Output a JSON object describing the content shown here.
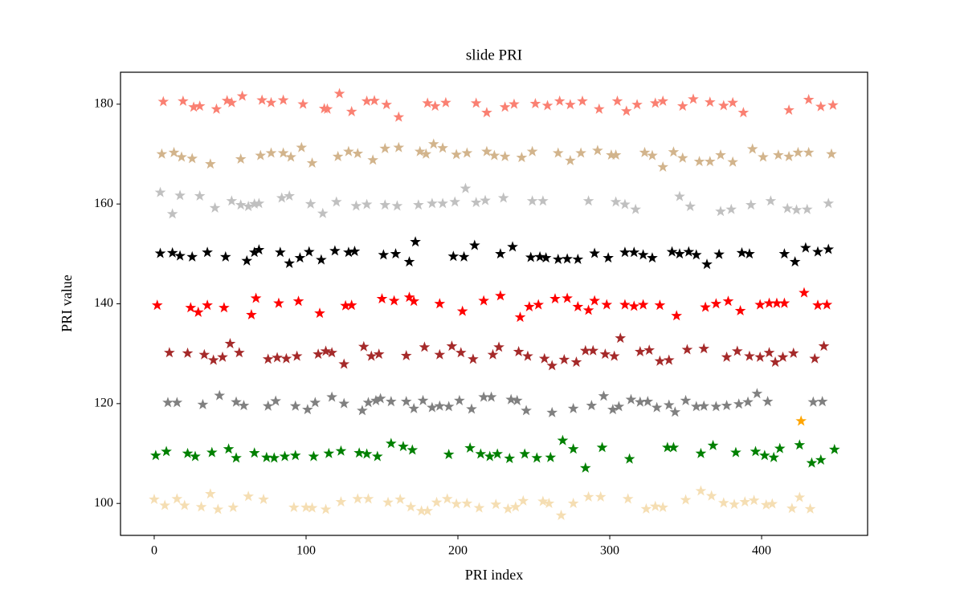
{
  "chart_data": {
    "type": "scatter",
    "title": "slide PRI",
    "x_label": "PRI index",
    "y_label": "PRI value",
    "xlim": [
      -22.2,
      469.8
    ],
    "ylim": [
      93.6,
      186.4
    ],
    "xticks": [
      0,
      100,
      200,
      300,
      400
    ],
    "yticks": [
      100,
      120,
      140,
      160,
      180
    ],
    "series": [
      {
        "color": "#fa8072",
        "x": [
          6,
          19,
          26,
          30,
          41,
          48,
          51,
          58,
          71,
          77,
          85,
          98,
          112,
          114,
          122,
          130,
          140,
          145,
          153,
          161,
          180,
          185,
          192,
          212,
          219,
          231,
          237,
          251,
          259,
          267,
          274,
          282,
          293,
          305,
          311,
          318,
          330,
          335,
          348,
          355,
          366,
          375,
          381,
          388,
          418,
          431,
          439,
          447
        ],
        "values": [
          180.5,
          180.6,
          179.4,
          179.6,
          179,
          180.7,
          180.3,
          181.6,
          180.8,
          180.3,
          180.8,
          180,
          179.1,
          179,
          182.1,
          178.5,
          180.6,
          180.7,
          179.9,
          177.4,
          180.2,
          179.6,
          180.3,
          180.2,
          178.3,
          179.4,
          180,
          180.1,
          179.7,
          180.6,
          179.9,
          180.6,
          179,
          180.6,
          178.6,
          179.9,
          180.2,
          180.6,
          179.6,
          181,
          180.4,
          179.7,
          180.3,
          178.3,
          178.8,
          180.9,
          179.5,
          179.8
        ]
      },
      {
        "color": "#d2b48c",
        "x": [
          5,
          13,
          18,
          25,
          37,
          57,
          70,
          77,
          85,
          90,
          97,
          104,
          121,
          128,
          134,
          144,
          152,
          161,
          175,
          179,
          184,
          190,
          199,
          206,
          219,
          224,
          231,
          242,
          249,
          266,
          274,
          281,
          292,
          301,
          304,
          323,
          328,
          335,
          342,
          348,
          359,
          366,
          373,
          381,
          394,
          401,
          411,
          418,
          424,
          431,
          446
        ],
        "values": [
          170,
          170.3,
          169.4,
          169.1,
          168,
          169,
          169.7,
          170.2,
          170.2,
          169.4,
          171.3,
          168.2,
          169.5,
          170.5,
          170.1,
          168.8,
          171.1,
          171.3,
          170.5,
          170,
          172,
          171.2,
          169.9,
          170.2,
          170.5,
          169.7,
          169.5,
          169.3,
          170.5,
          170.2,
          168.7,
          170.2,
          170.7,
          169.8,
          169.8,
          170.3,
          169.7,
          167.4,
          170.4,
          169.2,
          168.5,
          168.5,
          169.8,
          168.4,
          171,
          169.4,
          169.8,
          169.5,
          170.3,
          170.3,
          170
        ]
      },
      {
        "color": "#c0c0c0",
        "x": [
          4,
          12,
          17,
          30,
          40,
          51,
          57,
          62,
          66,
          69,
          84,
          89,
          103,
          111,
          120,
          133,
          140,
          152,
          160,
          174,
          183,
          190,
          198,
          205,
          212,
          218,
          230,
          249,
          256,
          286,
          304,
          310,
          317,
          346,
          353,
          373,
          380,
          393,
          406,
          417,
          423,
          430,
          444
        ],
        "values": [
          162.3,
          158,
          161.7,
          161.6,
          159.2,
          160.6,
          159.8,
          159.5,
          160,
          160.1,
          161.2,
          161.6,
          160,
          158.1,
          160.4,
          159.6,
          159.9,
          159.8,
          159.6,
          159.8,
          160.1,
          160.1,
          160.4,
          163.1,
          160.3,
          160.7,
          161.2,
          160.6,
          160.6,
          160.6,
          160.4,
          159.9,
          158.9,
          161.5,
          159.5,
          158.5,
          158.9,
          159.8,
          160.6,
          159.1,
          158.8,
          158.9,
          160.1
        ]
      },
      {
        "color": "#000000",
        "x": [
          4,
          12,
          17,
          25,
          35,
          47,
          61,
          66,
          69,
          83,
          89,
          96,
          102,
          110,
          119,
          128,
          132,
          151,
          159,
          168,
          172,
          197,
          204,
          211,
          228,
          236,
          248,
          254,
          258,
          266,
          272,
          279,
          290,
          299,
          310,
          316,
          322,
          328,
          341,
          346,
          352,
          357,
          364,
          372,
          387,
          392,
          415,
          422,
          429,
          437,
          444
        ],
        "values": [
          150.1,
          150.2,
          149.6,
          149.4,
          150.3,
          149.4,
          148.6,
          150.3,
          150.8,
          150.3,
          148.1,
          149.2,
          150.4,
          148.8,
          150.6,
          150.3,
          150.5,
          149.8,
          150,
          148.4,
          152.4,
          149.5,
          149.4,
          151.7,
          150,
          151.4,
          149.3,
          149.4,
          149.2,
          148.9,
          149,
          148.9,
          150.1,
          149.2,
          150.3,
          150.3,
          149.8,
          149.2,
          150.4,
          150,
          150.4,
          149.8,
          147.9,
          149.9,
          150.2,
          150,
          150,
          148.4,
          151.2,
          150.4,
          150.9
        ]
      },
      {
        "color": "#ff0000",
        "x": [
          2,
          24,
          29,
          35,
          46,
          64,
          67,
          82,
          95,
          109,
          126,
          130,
          150,
          158,
          168,
          171,
          188,
          203,
          217,
          228,
          241,
          247,
          253,
          264,
          272,
          279,
          286,
          290,
          298,
          310,
          316,
          322,
          333,
          344,
          363,
          370,
          378,
          386,
          399,
          405,
          410,
          415,
          428,
          437,
          443
        ],
        "values": [
          139.7,
          139.2,
          138.3,
          139.7,
          139.2,
          137.8,
          141.1,
          140.1,
          140.5,
          138.1,
          139.6,
          139.7,
          141,
          140.6,
          141.3,
          140.5,
          140,
          138.5,
          140.6,
          141.6,
          137.3,
          139.4,
          139.8,
          141,
          141.1,
          139.4,
          138.7,
          140.6,
          139.8,
          139.8,
          139.5,
          139.8,
          139.7,
          137.6,
          139.3,
          140,
          140.5,
          138.6,
          139.8,
          140.1,
          140.1,
          140.1,
          142.2,
          139.7,
          139.8
        ]
      },
      {
        "color": "#a52a2a",
        "x": [
          10,
          22,
          33,
          39,
          45,
          50,
          56,
          75,
          81,
          87,
          94,
          108,
          113,
          117,
          125,
          138,
          143,
          148,
          166,
          178,
          188,
          196,
          202,
          210,
          223,
          227,
          240,
          246,
          257,
          262,
          270,
          278,
          284,
          289,
          297,
          303,
          307,
          320,
          326,
          333,
          339,
          351,
          362,
          377,
          384,
          392,
          399,
          405,
          409,
          414,
          421,
          435,
          441
        ],
        "values": [
          130.2,
          130.1,
          129.8,
          128.7,
          129.3,
          132,
          130.2,
          128.9,
          129.2,
          129,
          129.5,
          129.9,
          130.5,
          130.2,
          127.9,
          131.4,
          129.5,
          129.9,
          129.6,
          131.3,
          129.8,
          131.5,
          130.2,
          128.9,
          129.8,
          131.3,
          130.4,
          129.5,
          129,
          127.6,
          128.8,
          128.3,
          130.6,
          130.6,
          129.9,
          129.5,
          133.1,
          130.4,
          130.7,
          128.5,
          128.7,
          130.8,
          131,
          129.3,
          130.5,
          129.5,
          129.3,
          130.2,
          128.3,
          129.3,
          130.1,
          129,
          131.5
        ]
      },
      {
        "color": "#808080",
        "x": [
          9,
          15,
          32,
          43,
          54,
          59,
          75,
          80,
          93,
          101,
          106,
          117,
          125,
          137,
          141,
          146,
          149,
          156,
          166,
          171,
          177,
          183,
          188,
          194,
          201,
          209,
          217,
          222,
          235,
          239,
          245,
          262,
          276,
          288,
          296,
          302,
          306,
          314,
          320,
          325,
          331,
          339,
          343,
          350,
          357,
          362,
          370,
          377,
          385,
          391,
          397,
          404,
          434,
          440
        ],
        "values": [
          120.2,
          120.2,
          119.8,
          121.6,
          120.3,
          119.6,
          119.5,
          120.5,
          119.5,
          118.8,
          120.2,
          121.3,
          120,
          118.6,
          120.2,
          120.6,
          121,
          120.4,
          120.4,
          119,
          120.6,
          119.2,
          119.5,
          119.4,
          120.6,
          118.9,
          121.3,
          121.3,
          120.8,
          120.6,
          118.6,
          118.2,
          119,
          119.6,
          121.5,
          118.8,
          119.4,
          120.8,
          120.3,
          120.4,
          119.2,
          119.7,
          118.3,
          120.6,
          119.4,
          119.5,
          119.4,
          119.6,
          119.9,
          120.3,
          122,
          120.4,
          120.3,
          120.4
        ]
      },
      {
        "color": "#ffa500",
        "x": [
          426
        ],
        "values": [
          116.5
        ]
      },
      {
        "color": "#008000",
        "x": [
          1,
          8,
          22,
          27,
          38,
          49,
          54,
          66,
          74,
          79,
          86,
          93,
          105,
          115,
          123,
          135,
          140,
          147,
          156,
          164,
          170,
          194,
          208,
          215,
          221,
          226,
          234,
          244,
          252,
          261,
          269,
          276,
          284,
          295,
          313,
          338,
          342,
          360,
          368,
          383,
          396,
          402,
          408,
          412,
          425,
          433,
          439,
          448
        ],
        "values": [
          109.6,
          110.4,
          110,
          109.4,
          110.2,
          110.9,
          109.1,
          110.1,
          109.2,
          109.1,
          109.4,
          109.6,
          109.4,
          110,
          110.5,
          110.1,
          109.9,
          109.4,
          112,
          111.4,
          110.7,
          109.8,
          111.1,
          109.9,
          109.4,
          109.9,
          109,
          109.9,
          109.1,
          109.2,
          112.6,
          110.9,
          107.1,
          111.2,
          108.9,
          111.2,
          111.2,
          110,
          111.6,
          110.2,
          110.4,
          109.6,
          109.2,
          111,
          111.7,
          108.1,
          108.7,
          110.8
        ]
      },
      {
        "color": "#f5deb3",
        "x": [
          0,
          7,
          15,
          20,
          31,
          37,
          42,
          52,
          62,
          72,
          92,
          100,
          104,
          113,
          123,
          134,
          141,
          154,
          162,
          169,
          176,
          180,
          186,
          193,
          199,
          206,
          214,
          225,
          233,
          238,
          243,
          256,
          260,
          268,
          276,
          286,
          294,
          312,
          324,
          330,
          335,
          350,
          360,
          367,
          375,
          382,
          389,
          395,
          403,
          407,
          420,
          425,
          432
        ],
        "values": [
          100.8,
          99.6,
          100.9,
          99.6,
          99.3,
          101.9,
          98.8,
          99.2,
          101.4,
          100.8,
          99.2,
          99.2,
          99.1,
          98.8,
          100.3,
          100.9,
          100.9,
          100.2,
          100.8,
          99.3,
          98.5,
          98.5,
          100.2,
          100.9,
          99.9,
          100,
          99.1,
          99.8,
          98.9,
          99.3,
          100.5,
          100.4,
          100,
          97.6,
          100,
          101.3,
          101.3,
          100.9,
          98.9,
          99.4,
          99.2,
          100.7,
          102.5,
          101.5,
          100.1,
          99.8,
          100.3,
          100.6,
          99.7,
          99.9,
          99,
          101.2,
          98.9
        ]
      }
    ]
  }
}
